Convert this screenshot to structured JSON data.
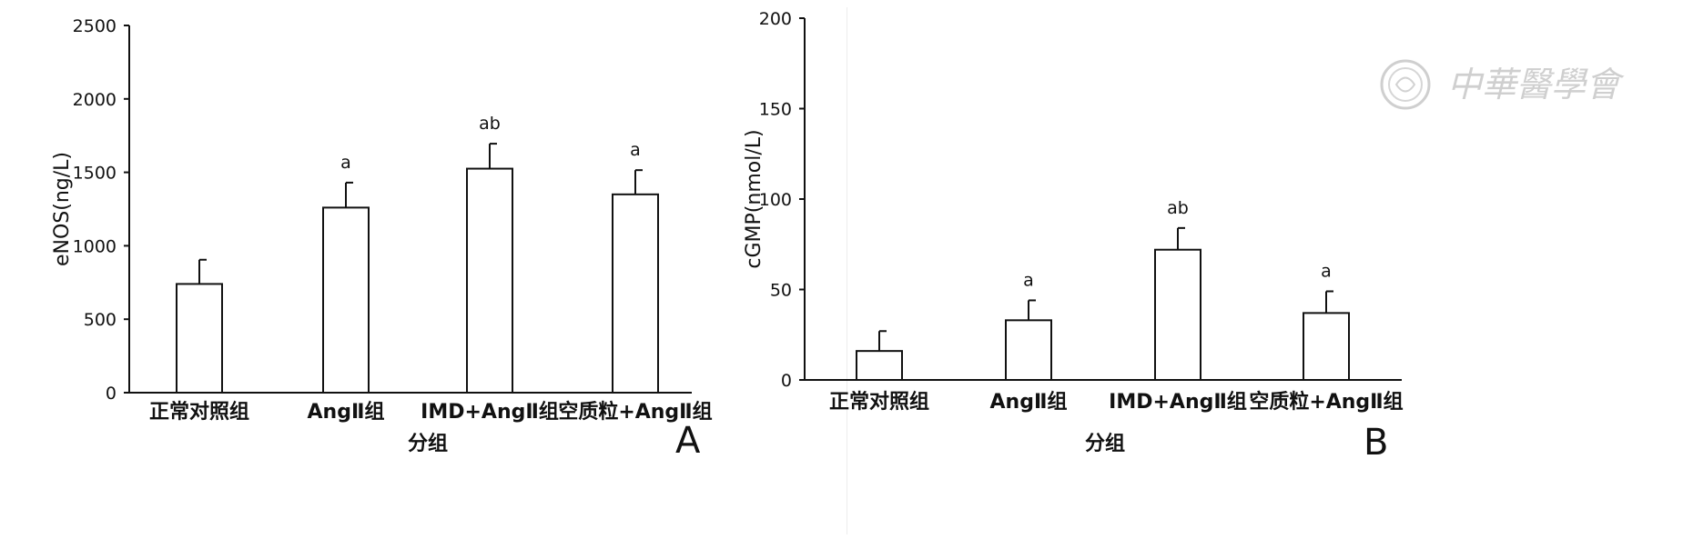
{
  "chart_data": [
    {
      "type": "bar",
      "panel": "A",
      "categories": [
        "正常对照组",
        "AngⅡ组",
        "IMD+AngⅡ组",
        "空质粒+AngⅡ组"
      ],
      "values": [
        740,
        1260,
        1525,
        1350
      ],
      "errors": [
        165,
        170,
        170,
        165
      ],
      "annotations": [
        "",
        "a",
        "ab",
        "a"
      ],
      "ylabel": "eNOS(ng/L)",
      "xlabel": "分组",
      "ylim": [
        0,
        2500
      ],
      "yticks": [
        0,
        500,
        1000,
        1500,
        2000,
        2500
      ],
      "grid": false
    },
    {
      "type": "bar",
      "panel": "B",
      "categories": [
        "正常对照组",
        "AngⅡ组",
        "IMD+AngⅡ组",
        "空质粒+AngⅡ组"
      ],
      "values": [
        16,
        33,
        72,
        37
      ],
      "errors": [
        11,
        11,
        12,
        12
      ],
      "annotations": [
        "",
        "a",
        "ab",
        "a"
      ],
      "ylabel": "cGMP(nmol/L)",
      "xlabel": "分组",
      "ylim": [
        0,
        200
      ],
      "yticks": [
        0,
        50,
        100,
        150,
        200
      ],
      "grid": false
    }
  ],
  "watermark": {
    "text": "中華醫學會"
  },
  "colors": {
    "bar_fill": "#ffffff",
    "bar_stroke": "#111111",
    "watermark": "#cfcfcf"
  }
}
